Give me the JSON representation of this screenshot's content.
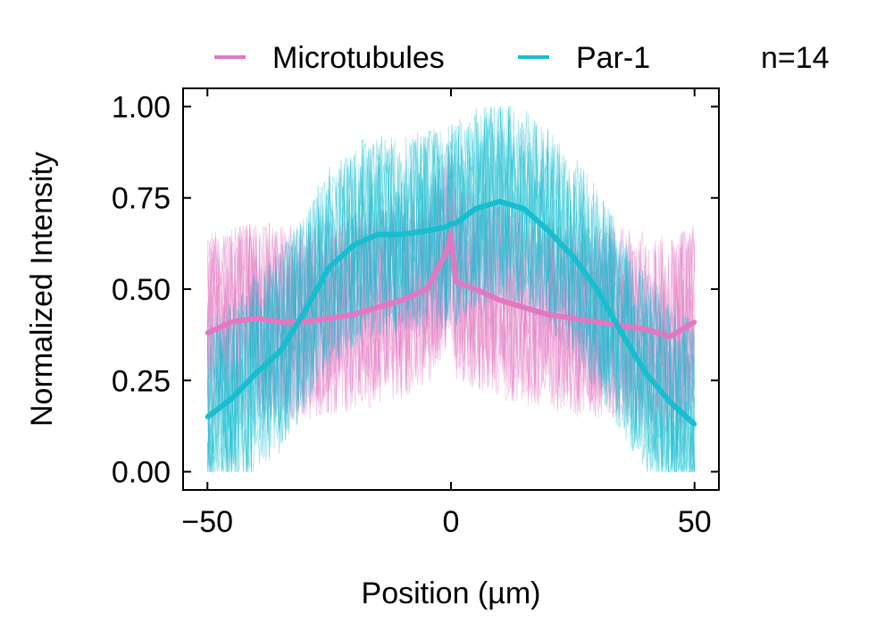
{
  "chart_data": {
    "type": "line",
    "title": "",
    "xlabel": "Position (µm)",
    "ylabel": "Normalized Intensity",
    "xlim": [
      -55,
      55
    ],
    "ylim": [
      -0.05,
      1.05
    ],
    "xticks": [
      -50,
      0,
      50
    ],
    "xtick_labels": [
      "−50",
      "0",
      "50"
    ],
    "yticks": [
      0.0,
      0.25,
      0.5,
      0.75,
      1.0
    ],
    "ytick_labels": [
      "0.00",
      "0.25",
      "0.50",
      "0.75",
      "1.00"
    ],
    "grid": false,
    "legend": {
      "placement": "top",
      "entries": [
        {
          "name": "Microtubules",
          "color": "#e377c2"
        },
        {
          "name": "Par-1",
          "color": "#17becf"
        }
      ]
    },
    "annotations": [
      {
        "text": "n=14"
      }
    ],
    "series": [
      {
        "name": "Microtubules",
        "color": "#e377c2",
        "noise_spread": 0.27,
        "x": [
          -50,
          -45,
          -40,
          -35,
          -30,
          -25,
          -20,
          -15,
          -10,
          -5,
          -1,
          0,
          1,
          5,
          10,
          15,
          20,
          25,
          30,
          35,
          40,
          45,
          50
        ],
        "y": [
          0.38,
          0.41,
          0.42,
          0.41,
          0.41,
          0.42,
          0.43,
          0.45,
          0.47,
          0.5,
          0.6,
          0.65,
          0.52,
          0.5,
          0.47,
          0.45,
          0.43,
          0.42,
          0.41,
          0.4,
          0.39,
          0.37,
          0.41
        ]
      },
      {
        "name": "Par-1",
        "color": "#17becf",
        "noise_spread": 0.28,
        "x": [
          -50,
          -45,
          -40,
          -35,
          -30,
          -25,
          -20,
          -15,
          -10,
          -5,
          -1,
          0,
          1,
          5,
          10,
          15,
          20,
          25,
          30,
          35,
          40,
          45,
          50
        ],
        "y": [
          0.15,
          0.2,
          0.27,
          0.33,
          0.44,
          0.56,
          0.62,
          0.65,
          0.65,
          0.66,
          0.67,
          0.68,
          0.68,
          0.72,
          0.74,
          0.72,
          0.66,
          0.59,
          0.5,
          0.38,
          0.27,
          0.19,
          0.13
        ]
      }
    ]
  }
}
